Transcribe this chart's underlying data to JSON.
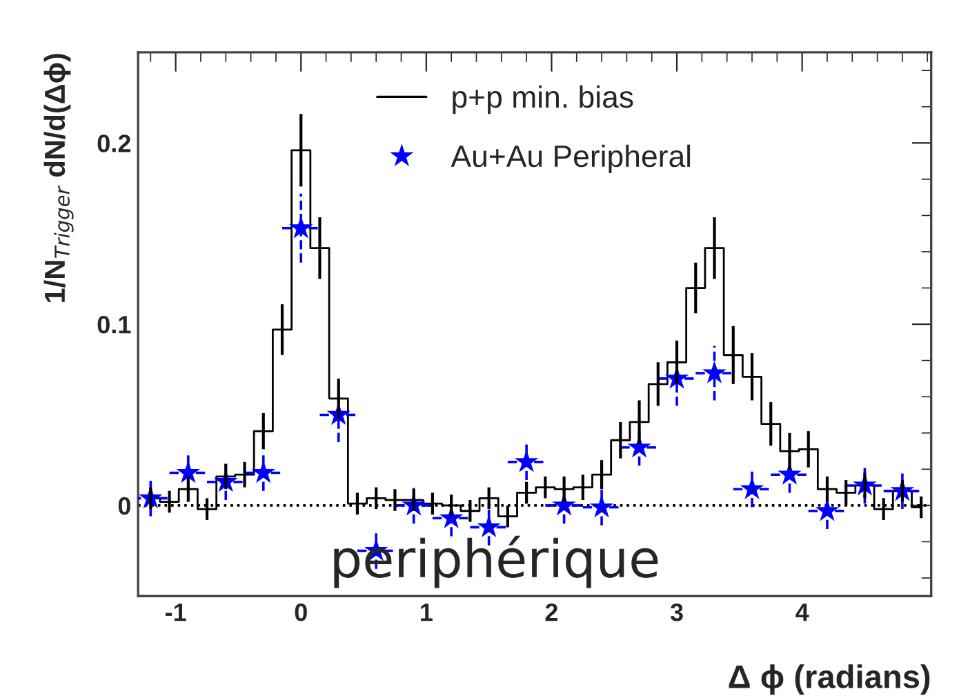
{
  "chart_data": {
    "type": "step",
    "xlabel": "Δ ϕ (radians)",
    "ylabel": "1/N$_{Trigger}$ dN/d(Δϕ)",
    "annotations": [
      "periphérique"
    ],
    "series": [
      {
        "name": "p+p min. bias",
        "color": "#000000",
        "line_style": "solid",
        "x": [
          -1.2,
          -1.05,
          -0.9,
          -0.75,
          -0.6,
          -0.45,
          -0.3,
          -0.15,
          0.0,
          0.15,
          0.3,
          0.45,
          0.6,
          0.75,
          0.9,
          1.05,
          1.2,
          1.35,
          1.5,
          1.65,
          1.8,
          1.95,
          2.1,
          2.25,
          2.4,
          2.55,
          2.7,
          2.85,
          3.0,
          3.15,
          3.3,
          3.45,
          3.6,
          3.75,
          3.9,
          4.05,
          4.2,
          4.35,
          4.5,
          4.65,
          4.8,
          4.95
        ],
        "values": [
          0.004,
          0.002,
          0.009,
          -0.002,
          0.016,
          0.017,
          0.041,
          0.097,
          0.196,
          0.142,
          0.059,
          0.001,
          0.004,
          0.003,
          0.003,
          0.001,
          0.0,
          -0.003,
          0.004,
          -0.006,
          0.007,
          0.01,
          0.009,
          0.01,
          0.017,
          0.036,
          0.046,
          0.067,
          0.079,
          0.12,
          0.142,
          0.083,
          0.071,
          0.045,
          0.03,
          0.031,
          0.009,
          0.007,
          0.011,
          -0.002,
          0.008,
          -0.001
        ],
        "errors": [
          0.006,
          0.006,
          0.007,
          0.006,
          0.007,
          0.007,
          0.01,
          0.014,
          0.02,
          0.017,
          0.011,
          0.006,
          0.006,
          0.006,
          0.006,
          0.006,
          0.006,
          0.006,
          0.006,
          0.006,
          0.006,
          0.006,
          0.007,
          0.007,
          0.008,
          0.01,
          0.012,
          0.012,
          0.012,
          0.014,
          0.017,
          0.016,
          0.013,
          0.012,
          0.01,
          0.01,
          0.007,
          0.007,
          0.007,
          0.006,
          0.006,
          0.006
        ]
      },
      {
        "name": "Au+Au Peripheral",
        "type": "scatter",
        "color": "#0000ff",
        "marker": "star",
        "line_style": "dashed",
        "x": [
          -1.2,
          -0.9,
          -0.6,
          -0.3,
          0.0,
          0.3,
          0.6,
          0.9,
          1.2,
          1.5,
          1.8,
          2.1,
          2.4,
          2.7,
          3.0,
          3.3,
          3.6,
          3.9,
          4.2,
          4.5,
          4.8
        ],
        "values": [
          0.004,
          0.018,
          0.013,
          0.018,
          0.153,
          0.05,
          -0.025,
          0.0,
          -0.007,
          -0.012,
          0.024,
          0.0,
          -0.001,
          0.032,
          0.07,
          0.073,
          0.009,
          0.017,
          -0.003,
          0.011,
          0.008
        ],
        "errors": [
          0.01,
          0.01,
          0.01,
          0.01,
          0.019,
          0.015,
          0.01,
          0.01,
          0.01,
          0.01,
          0.01,
          0.01,
          0.01,
          0.01,
          0.015,
          0.015,
          0.01,
          0.01,
          0.01,
          0.01,
          0.01
        ],
        "xerrors": [
          0.15,
          0.15,
          0.15,
          0.15,
          0.15,
          0.15,
          0.15,
          0.15,
          0.15,
          0.15,
          0.15,
          0.15,
          0.15,
          0.15,
          0.15,
          0.15,
          0.15,
          0.15,
          0.15,
          0.15,
          0.15
        ]
      }
    ],
    "ref_lines": [
      {
        "axis": "y",
        "value": 0,
        "color": "#000000",
        "line_style": "dotted"
      }
    ],
    "xlim": [
      -1.3,
      5.03
    ],
    "ylim": [
      -0.05,
      0.25
    ],
    "xticks": [
      -1,
      0,
      1,
      2,
      3,
      4
    ],
    "yticks": [
      0,
      0.1,
      0.2
    ],
    "grid": false,
    "legend": "top"
  }
}
